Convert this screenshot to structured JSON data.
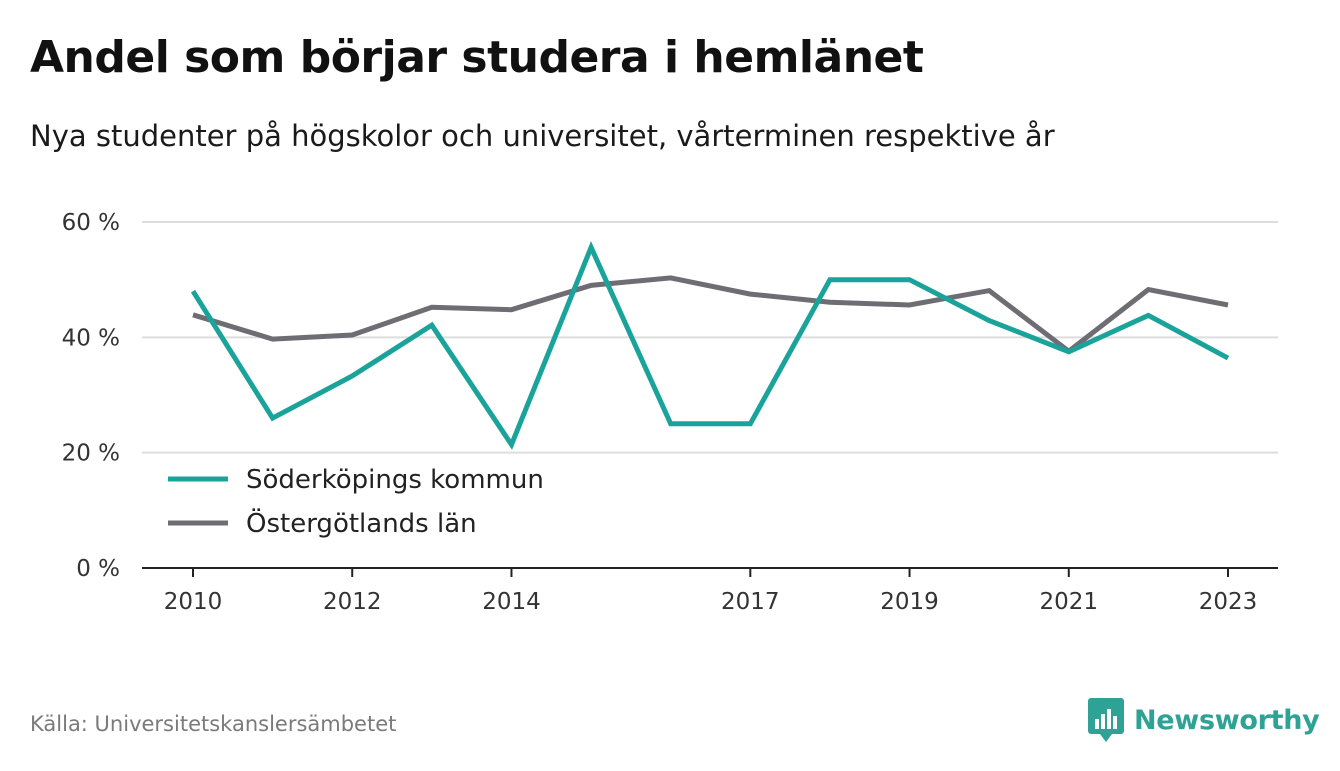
{
  "header": {
    "title": "Andel som börjar studera i hemlänet",
    "subtitle": "Nya studenter på högskolor och universitet, vårterminen respektive år"
  },
  "footer": {
    "source": "Källa: Universitetskanslersämbetet",
    "brand": "Newsworthy",
    "brand_icon": "bar-chart-speech-bubble-icon"
  },
  "colors": {
    "series_1": "#1aa39a",
    "series_2": "#6f6d74",
    "grid": "#dddddd",
    "axis": "#222222",
    "brand": "#2fa296"
  },
  "chart_data": {
    "type": "line",
    "x": [
      2010,
      2011,
      2012,
      2013,
      2014,
      2015,
      2016,
      2017,
      2018,
      2019,
      2020,
      2021,
      2022,
      2023
    ],
    "x_tick_labels": [
      "2010",
      "2012",
      "2014",
      "2017",
      "2019",
      "2021",
      "2023"
    ],
    "x_tick_values": [
      2010,
      2012,
      2014,
      2017,
      2019,
      2021,
      2023
    ],
    "y_tick_labels": [
      "0 %",
      "20 %",
      "40 %",
      "60 %"
    ],
    "y_tick_values": [
      0,
      20,
      40,
      60
    ],
    "ylim": [
      0,
      60
    ],
    "grid": true,
    "legend_position": "bottom-left",
    "series": [
      {
        "name": "Söderköpings kommun",
        "color": "#1aa39a",
        "values": [
          48,
          26,
          33.3,
          42.1,
          21.4,
          55.6,
          25,
          25,
          50,
          50,
          42.9,
          37.5,
          43.8,
          36.4
        ]
      },
      {
        "name": "Östergötlands län",
        "color": "#6f6d74",
        "values": [
          43.9,
          39.7,
          40.4,
          45.2,
          44.8,
          49,
          50.3,
          47.5,
          46.1,
          45.6,
          48.1,
          37.6,
          48.3,
          45.6
        ]
      }
    ]
  }
}
